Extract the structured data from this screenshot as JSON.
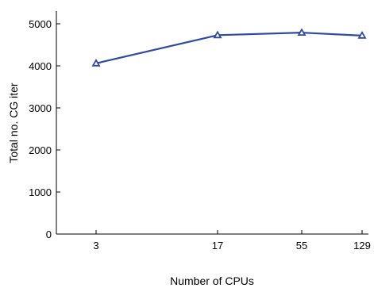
{
  "chart_data": {
    "type": "line",
    "title": "",
    "xlabel": "Number of CPUs",
    "ylabel": "Total no. CG iter",
    "categories": [
      "3",
      "17",
      "55",
      "129"
    ],
    "series": [
      {
        "values": [
          4060,
          4730,
          4790,
          4720
        ],
        "color": "#2f4aa3",
        "marker": "triangle-up"
      }
    ],
    "ylim": [
      0,
      5000
    ],
    "yticks": [
      0,
      1000,
      2000,
      3000,
      4000,
      5000
    ],
    "grid": false,
    "legend": "none"
  }
}
